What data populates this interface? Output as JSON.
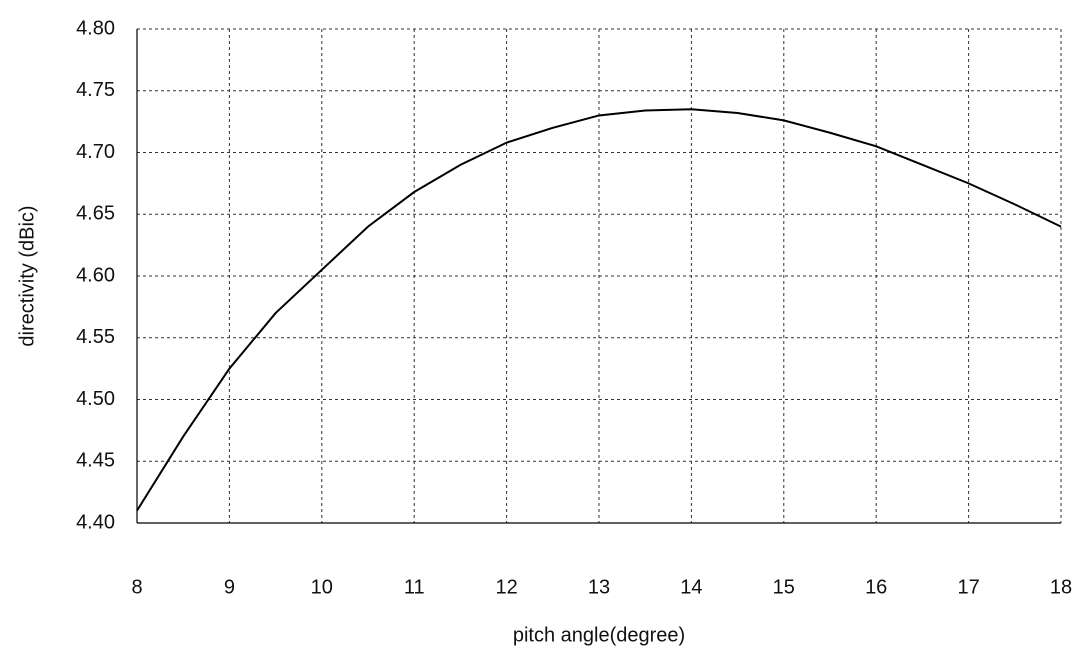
{
  "chart_data": {
    "type": "line",
    "x_label": "pitch angle(degree)",
    "y_label": "directivity (dBic)",
    "x": [
      8,
      8.5,
      9,
      9.5,
      10,
      10.5,
      11,
      11.5,
      12,
      12.5,
      13,
      13.5,
      14,
      14.5,
      15,
      15.5,
      16,
      16.5,
      17,
      17.5,
      18
    ],
    "values": [
      4.41,
      4.47,
      4.525,
      4.57,
      4.605,
      4.64,
      4.668,
      4.69,
      4.708,
      4.72,
      4.73,
      4.734,
      4.735,
      4.732,
      4.726,
      4.716,
      4.705,
      4.69,
      4.675,
      4.658,
      4.64
    ],
    "color": "#000000",
    "xlim": [
      8,
      18
    ],
    "xticks": [
      8,
      9,
      10,
      11,
      12,
      13,
      14,
      15,
      16,
      17,
      18
    ],
    "ylim": [
      4.4,
      4.8
    ],
    "yticks": [
      {
        "value": 4.4,
        "label": "4.40"
      },
      {
        "value": 4.45,
        "label": "4.45"
      },
      {
        "value": 4.5,
        "label": "4.50"
      },
      {
        "value": 4.55,
        "label": "4.55"
      },
      {
        "value": 4.6,
        "label": "4.60"
      },
      {
        "value": 4.65,
        "label": "4.65"
      },
      {
        "value": 4.7,
        "label": "4.70"
      },
      {
        "value": 4.75,
        "label": "4.75"
      },
      {
        "value": 4.8,
        "label": "4.80"
      }
    ],
    "grid": true
  }
}
